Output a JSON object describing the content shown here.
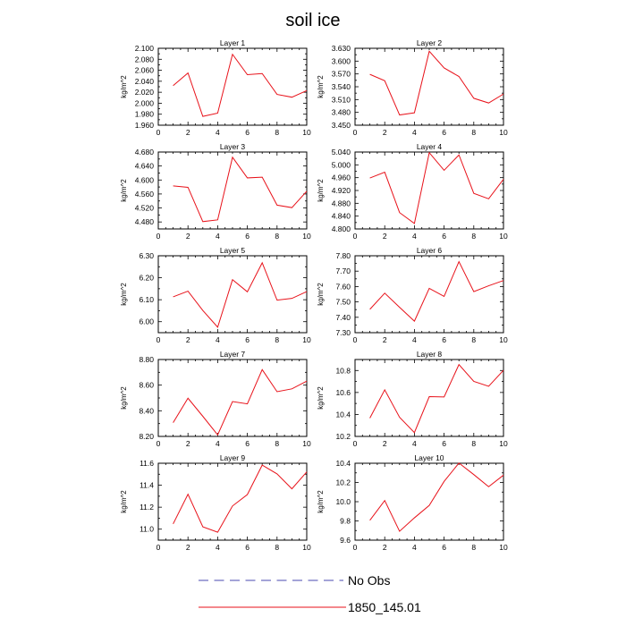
{
  "chart_data": {
    "type": "line",
    "title": "soil ice",
    "legend": {
      "placement": "bottom",
      "entries": [
        {
          "label": "No Obs",
          "color": "#4a4ab0",
          "style": "dashed"
        },
        {
          "label": "1850_145.01",
          "color": "#e8121a",
          "style": "solid"
        }
      ]
    },
    "series_color": "#e8121a",
    "x": [
      1,
      2,
      3,
      4,
      5,
      6,
      7,
      8,
      9,
      10
    ],
    "xlim": [
      0,
      10
    ],
    "xticks": [
      "0",
      "2",
      "4",
      "6",
      "8",
      "10"
    ],
    "panels": [
      {
        "title": "Layer 1",
        "ylabel": "kg/m^2",
        "ylim": [
          1.96,
          2.1
        ],
        "yticks": [
          "1.960",
          "1.980",
          "2.000",
          "2.020",
          "2.040",
          "2.060",
          "2.080",
          "2.100"
        ],
        "values": [
          2.032,
          2.055,
          1.976,
          1.982,
          2.089,
          2.052,
          2.054,
          2.016,
          2.011,
          2.023
        ]
      },
      {
        "title": "Layer 2",
        "ylabel": "kg/m^2",
        "ylim": [
          3.45,
          3.63
        ],
        "yticks": [
          "3.450",
          "3.480",
          "3.510",
          "3.540",
          "3.570",
          "3.600",
          "3.630"
        ],
        "values": [
          3.569,
          3.554,
          3.474,
          3.479,
          3.623,
          3.584,
          3.564,
          3.513,
          3.502,
          3.523
        ]
      },
      {
        "title": "Layer 3",
        "ylabel": "kg/m^2",
        "ylim": [
          4.46,
          4.68
        ],
        "yticks": [
          "4.480",
          "4.520",
          "4.560",
          "4.600",
          "4.640",
          "4.680"
        ],
        "values": [
          4.583,
          4.579,
          4.481,
          4.486,
          4.665,
          4.606,
          4.608,
          4.528,
          4.521,
          4.568
        ]
      },
      {
        "title": "Layer 4",
        "ylabel": "kg/m^2",
        "ylim": [
          4.8,
          5.04
        ],
        "yticks": [
          "4.800",
          "4.840",
          "4.880",
          "4.920",
          "4.960",
          "5.000",
          "5.040"
        ],
        "values": [
          4.959,
          4.977,
          4.851,
          4.817,
          5.038,
          4.983,
          5.031,
          4.911,
          4.894,
          4.955
        ]
      },
      {
        "title": "Layer 5",
        "ylabel": "kg/m^2",
        "ylim": [
          5.95,
          6.3
        ],
        "yticks": [
          "6.00",
          "6.10",
          "6.20",
          "6.30"
        ],
        "values": [
          6.113,
          6.139,
          6.051,
          5.975,
          6.191,
          6.136,
          6.268,
          6.098,
          6.106,
          6.137
        ]
      },
      {
        "title": "Layer 6",
        "ylabel": "kg/m^2",
        "ylim": [
          7.3,
          7.8
        ],
        "yticks": [
          "7.30",
          "7.40",
          "7.50",
          "7.60",
          "7.70",
          "7.80"
        ],
        "values": [
          7.452,
          7.557,
          7.465,
          7.375,
          7.588,
          7.536,
          7.762,
          7.567,
          7.605,
          7.639
        ]
      },
      {
        "title": "Layer 7",
        "ylabel": "kg/m^2",
        "ylim": [
          8.2,
          8.8
        ],
        "yticks": [
          "8.20",
          "8.40",
          "8.60",
          "8.80"
        ],
        "values": [
          8.307,
          8.498,
          8.357,
          8.212,
          8.472,
          8.454,
          8.721,
          8.549,
          8.571,
          8.631
        ]
      },
      {
        "title": "Layer 8",
        "ylabel": "kg/m^2",
        "ylim": [
          10.2,
          10.9
        ],
        "yticks": [
          "10.2",
          "10.4",
          "10.6",
          "10.8"
        ],
        "values": [
          10.367,
          10.624,
          10.374,
          10.235,
          10.562,
          10.559,
          10.854,
          10.701,
          10.656,
          10.802
        ]
      },
      {
        "title": "Layer 9",
        "ylabel": "kg/m^2",
        "ylim": [
          10.9,
          11.6
        ],
        "yticks": [
          "11.0",
          "11.2",
          "11.4",
          "11.6"
        ],
        "values": [
          11.048,
          11.318,
          11.021,
          10.972,
          11.211,
          11.315,
          11.583,
          11.503,
          11.367,
          11.521
        ]
      },
      {
        "title": "Layer 10",
        "ylabel": "kg/m^2",
        "ylim": [
          9.6,
          10.4
        ],
        "yticks": [
          "9.6",
          "9.8",
          "10.0",
          "10.2",
          "10.4"
        ],
        "values": [
          9.806,
          10.012,
          9.692,
          9.832,
          9.961,
          10.211,
          10.402,
          10.282,
          10.156,
          10.276
        ]
      }
    ]
  }
}
